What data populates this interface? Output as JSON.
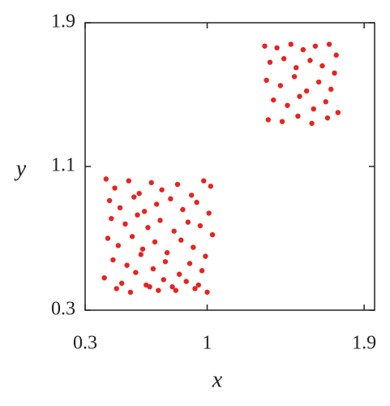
{
  "chart_data": {
    "type": "scatter",
    "x_label": "x",
    "y_label": "y",
    "xlim": [
      0.3,
      1.96
    ],
    "ylim": [
      0.3,
      1.9
    ],
    "xticks": [
      0.3,
      1,
      1.9
    ],
    "yticks": [
      0.3,
      1.1,
      1.9
    ],
    "series": [
      {
        "color": "#e8231f",
        "x": [
          0.42,
          0.47,
          0.55,
          0.61,
          0.68,
          0.74,
          0.83,
          0.91,
          0.98,
          1.02,
          0.44,
          0.5,
          0.58,
          0.64,
          0.71,
          0.79,
          0.86,
          0.94,
          1.01,
          0.45,
          0.53,
          0.6,
          0.66,
          0.73,
          0.81,
          0.89,
          0.96,
          1.03,
          0.43,
          0.49,
          0.57,
          0.63,
          0.7,
          0.77,
          0.85,
          0.92,
          0.99,
          0.46,
          0.54,
          0.62,
          0.69,
          0.76,
          0.84,
          0.9,
          0.97,
          0.41,
          0.51,
          0.59,
          0.67,
          0.75,
          0.82,
          0.88,
          0.95,
          1.0,
          0.48,
          0.56,
          0.65,
          0.72,
          0.8,
          0.93
        ],
        "y": [
          1.03,
          0.98,
          1.02,
          0.95,
          1.01,
          0.97,
          1.0,
          0.94,
          1.02,
          0.99,
          0.91,
          0.87,
          0.93,
          0.85,
          0.89,
          0.92,
          0.86,
          0.9,
          0.84,
          0.81,
          0.78,
          0.83,
          0.76,
          0.8,
          0.74,
          0.79,
          0.77,
          0.72,
          0.7,
          0.66,
          0.71,
          0.64,
          0.68,
          0.62,
          0.69,
          0.65,
          0.6,
          0.58,
          0.55,
          0.61,
          0.53,
          0.57,
          0.5,
          0.56,
          0.52,
          0.48,
          0.45,
          0.51,
          0.43,
          0.47,
          0.41,
          0.46,
          0.44,
          0.4,
          0.42,
          0.4,
          0.44,
          0.41,
          0.43,
          0.42
        ]
      },
      {
        "color": "#e8231f",
        "x": [
          1.33,
          1.4,
          1.48,
          1.55,
          1.62,
          1.7,
          1.74,
          1.36,
          1.44,
          1.51,
          1.59,
          1.66,
          1.73,
          1.34,
          1.42,
          1.5,
          1.57,
          1.64,
          1.71,
          1.38,
          1.46,
          1.53,
          1.61,
          1.68,
          1.75,
          1.35,
          1.43,
          1.52,
          1.6,
          1.69
        ],
        "y": [
          1.77,
          1.76,
          1.78,
          1.75,
          1.77,
          1.78,
          1.72,
          1.68,
          1.7,
          1.65,
          1.69,
          1.66,
          1.62,
          1.58,
          1.55,
          1.6,
          1.52,
          1.57,
          1.53,
          1.47,
          1.44,
          1.49,
          1.42,
          1.46,
          1.4,
          1.36,
          1.35,
          1.38,
          1.34,
          1.37
        ]
      }
    ]
  }
}
